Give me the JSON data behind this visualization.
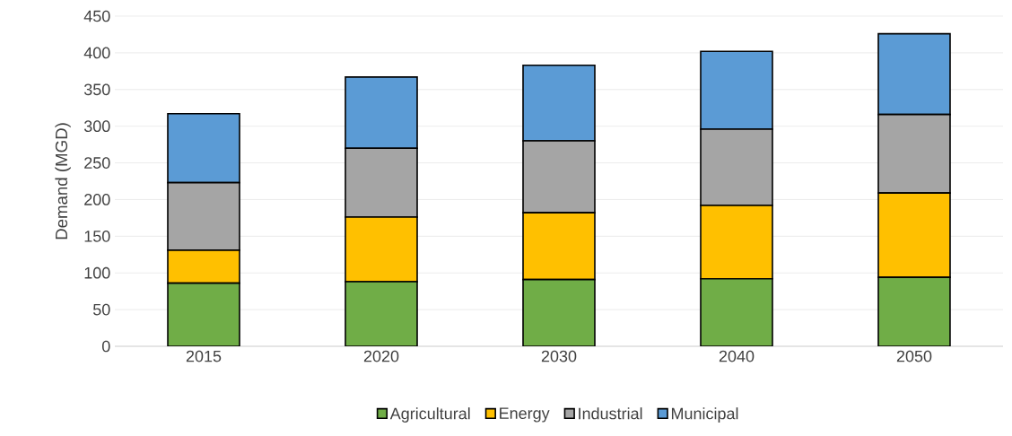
{
  "chart_data": {
    "type": "bar",
    "stacked": true,
    "ylabel": "Demand (MGD)",
    "categories": [
      "2015",
      "2020",
      "2030",
      "2040",
      "2050"
    ],
    "series": [
      {
        "name": "Agricultural",
        "color": "#70ad47",
        "values": [
          86,
          88,
          91,
          92,
          94
        ]
      },
      {
        "name": "Energy",
        "color": "#ffc000",
        "values": [
          45,
          88,
          91,
          100,
          115
        ]
      },
      {
        "name": "Industrial",
        "color": "#a5a5a5",
        "values": [
          92,
          94,
          98,
          104,
          107
        ]
      },
      {
        "name": "Municipal",
        "color": "#5b9bd5",
        "values": [
          94,
          97,
          103,
          106,
          110
        ]
      }
    ],
    "ylim": [
      0,
      450
    ],
    "yticks": [
      0,
      50,
      100,
      150,
      200,
      250,
      300,
      350,
      400,
      450
    ],
    "grid": "y",
    "legend": "bottom"
  }
}
